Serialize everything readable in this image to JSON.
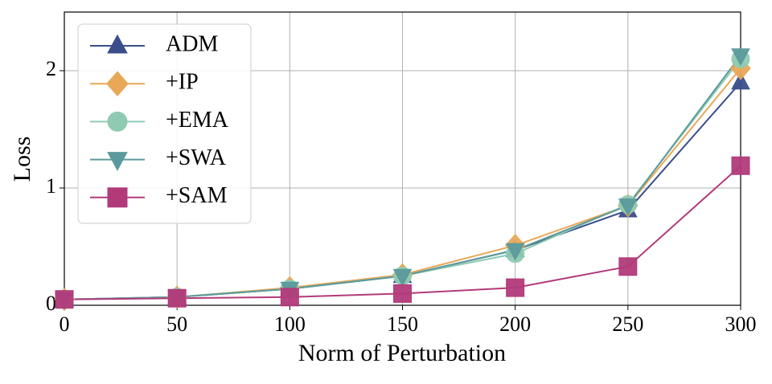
{
  "chart_data": {
    "type": "line",
    "x_label": "Norm of Perturbation",
    "y_label": "Loss",
    "x": [
      0,
      50,
      100,
      150,
      200,
      250,
      300
    ],
    "xlim": [
      0,
      300
    ],
    "ylim": [
      0,
      2.5
    ],
    "xticks": [
      0,
      50,
      100,
      150,
      200,
      250,
      300
    ],
    "yticks": [
      0,
      1,
      2
    ],
    "grid": true,
    "legend": "upper left",
    "series": [
      {
        "name": "ADM",
        "color": "#3a4e8c",
        "marker": "triangle-up",
        "values": [
          0.05,
          0.07,
          0.14,
          0.25,
          0.47,
          0.81,
          1.9
        ]
      },
      {
        "name": "+IP",
        "color": "#e9a857",
        "marker": "diamond",
        "values": [
          0.05,
          0.07,
          0.15,
          0.26,
          0.51,
          0.85,
          2.02
        ]
      },
      {
        "name": "+EMA",
        "color": "#8fcbb3",
        "marker": "circle",
        "values": [
          0.05,
          0.07,
          0.14,
          0.25,
          0.44,
          0.86,
          2.1
        ]
      },
      {
        "name": "+SWA",
        "color": "#5b9a9c",
        "marker": "triangle-down",
        "values": [
          0.05,
          0.07,
          0.14,
          0.25,
          0.47,
          0.85,
          2.13
        ]
      },
      {
        "name": "+SAM",
        "color": "#b23a7a",
        "marker": "square",
        "values": [
          0.05,
          0.06,
          0.07,
          0.1,
          0.15,
          0.33,
          1.19
        ]
      }
    ]
  }
}
